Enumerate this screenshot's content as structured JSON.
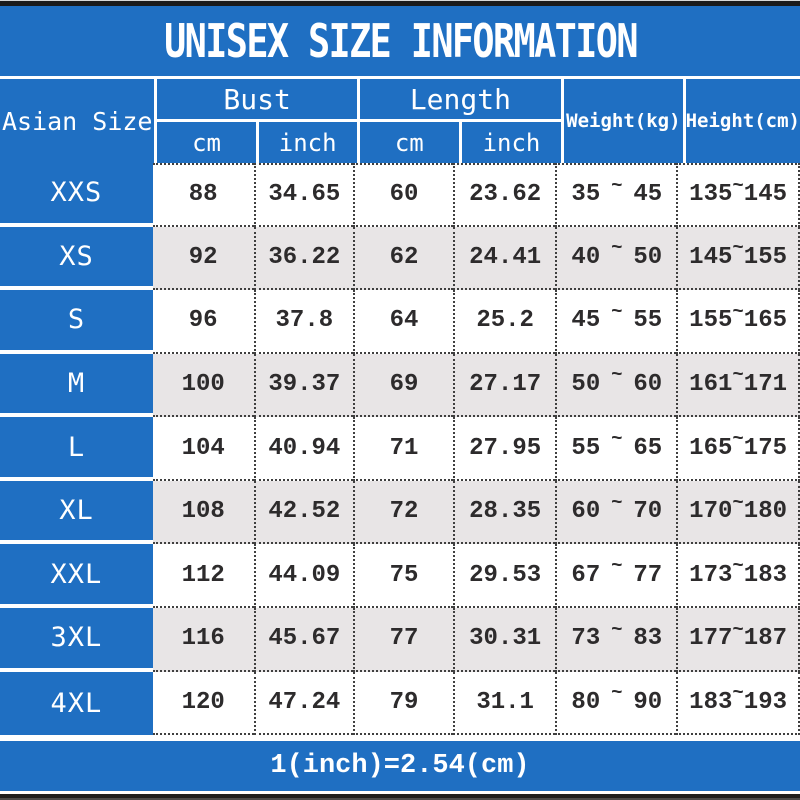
{
  "title": "UNISEX SIZE INFORMATION",
  "table": {
    "size_col_header": "Asian Size",
    "groups": [
      {
        "label": "Bust",
        "sub": [
          "cm",
          "inch"
        ]
      },
      {
        "label": "Length",
        "sub": [
          "cm",
          "inch"
        ]
      }
    ],
    "weight_header": "Weight(kg)",
    "height_header": "Height(cm)",
    "tilde": "~",
    "rows": [
      {
        "size": "XXS",
        "bust_cm": "88",
        "bust_in": "34.65",
        "len_cm": "60",
        "len_in": "23.62",
        "w_min": "35",
        "w_max": "45",
        "h_min": "135",
        "h_max": "145"
      },
      {
        "size": "XS",
        "bust_cm": "92",
        "bust_in": "36.22",
        "len_cm": "62",
        "len_in": "24.41",
        "w_min": "40",
        "w_max": "50",
        "h_min": "145",
        "h_max": "155"
      },
      {
        "size": "S",
        "bust_cm": "96",
        "bust_in": "37.8",
        "len_cm": "64",
        "len_in": "25.2",
        "w_min": "45",
        "w_max": "55",
        "h_min": "155",
        "h_max": "165"
      },
      {
        "size": "M",
        "bust_cm": "100",
        "bust_in": "39.37",
        "len_cm": "69",
        "len_in": "27.17",
        "w_min": "50",
        "w_max": "60",
        "h_min": "161",
        "h_max": "171"
      },
      {
        "size": "L",
        "bust_cm": "104",
        "bust_in": "40.94",
        "len_cm": "71",
        "len_in": "27.95",
        "w_min": "55",
        "w_max": "65",
        "h_min": "165",
        "h_max": "175"
      },
      {
        "size": "XL",
        "bust_cm": "108",
        "bust_in": "42.52",
        "len_cm": "72",
        "len_in": "28.35",
        "w_min": "60",
        "w_max": "70",
        "h_min": "170",
        "h_max": "180"
      },
      {
        "size": "XXL",
        "bust_cm": "112",
        "bust_in": "44.09",
        "len_cm": "75",
        "len_in": "29.53",
        "w_min": "67",
        "w_max": "77",
        "h_min": "173",
        "h_max": "183"
      },
      {
        "size": "3XL",
        "bust_cm": "116",
        "bust_in": "45.67",
        "len_cm": "77",
        "len_in": "30.31",
        "w_min": "73",
        "w_max": "83",
        "h_min": "177",
        "h_max": "187"
      },
      {
        "size": "4XL",
        "bust_cm": "120",
        "bust_in": "47.24",
        "len_cm": "79",
        "len_in": "31.1",
        "w_min": "80",
        "w_max": "90",
        "h_min": "183",
        "h_max": "193"
      }
    ]
  },
  "footer": {
    "note": "1(inch)=2.54(cm)"
  },
  "colors": {
    "accent_blue": "#1f6fc2",
    "alt_row_gray": "#e8e5e6",
    "dotted_border": "#3f3f3f",
    "bar_black": "#1b1b1b"
  }
}
